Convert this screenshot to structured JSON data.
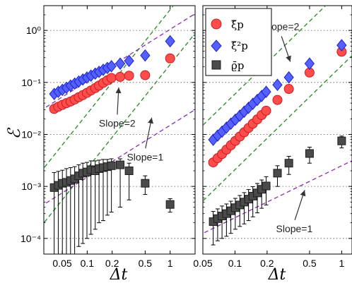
{
  "figure": {
    "ylabel": "ℰ",
    "xlabel": "Δt",
    "legend": [
      "ξ̃p",
      "ξ̃²p",
      "ϱ̄p"
    ],
    "colors": {
      "xi": "#ff4d4d",
      "xi_edge": "#cc1a1a",
      "xi2": "#5560ff",
      "xi2_edge": "#1a24cc",
      "rho": "#4a4a4a",
      "rho_edge": "#1e1e1e",
      "slope2": "#228b22",
      "slope1": "#8b2bb0"
    }
  },
  "chart_data": [
    {
      "type": "scatter",
      "panel": "left",
      "xscale": "log",
      "yscale": "log",
      "xlim": [
        0.03,
        2.0
      ],
      "ylim": [
        5e-05,
        3.0
      ],
      "xticks": [
        0.05,
        0.1,
        0.2,
        0.5,
        1
      ],
      "xtick_labels": [
        "0.05",
        "0.1",
        "0.2",
        "0.5",
        "1"
      ],
      "yticks": [
        0.0001,
        0.001,
        0.01,
        0.1,
        1
      ],
      "ytick_labels": [
        "10⁻⁴",
        "10⁻³",
        "10⁻²",
        "10⁻¹",
        "10⁰"
      ],
      "grid": "horizontal dotted",
      "series": [
        {
          "name": "ξ̃p",
          "marker": "circle",
          "x": [
            0.04,
            0.0448,
            0.0502,
            0.0562,
            0.063,
            0.0706,
            0.0791,
            0.0886,
            0.0993,
            0.111,
            0.125,
            0.139,
            0.156,
            0.175,
            0.196,
            0.25,
            0.32,
            0.5,
            1.0
          ],
          "y": [
            0.031,
            0.034,
            0.037,
            0.04,
            0.043,
            0.047,
            0.052,
            0.057,
            0.063,
            0.07,
            0.078,
            0.087,
            0.098,
            0.11,
            0.122,
            0.128,
            0.135,
            0.138,
            0.29
          ]
        },
        {
          "name": "ξ̃²p",
          "marker": "diamond",
          "x": [
            0.04,
            0.0448,
            0.0502,
            0.0562,
            0.063,
            0.0706,
            0.0791,
            0.0886,
            0.0993,
            0.111,
            0.125,
            0.139,
            0.156,
            0.175,
            0.196,
            0.25,
            0.32,
            0.5,
            1.0
          ],
          "y": [
            0.06,
            0.066,
            0.072,
            0.079,
            0.087,
            0.095,
            0.104,
            0.114,
            0.124,
            0.135,
            0.148,
            0.16,
            0.175,
            0.19,
            0.205,
            0.23,
            0.26,
            0.33,
            0.62
          ]
        },
        {
          "name": "ϱ̄p",
          "marker": "square",
          "x": [
            0.04,
            0.0448,
            0.0502,
            0.0562,
            0.063,
            0.0706,
            0.0791,
            0.0886,
            0.0993,
            0.111,
            0.125,
            0.139,
            0.156,
            0.175,
            0.196,
            0.25,
            0.32,
            0.5,
            1.0
          ],
          "y": [
            0.00095,
            0.00105,
            0.00115,
            0.0012,
            0.0013,
            0.0014,
            0.0016,
            0.0018,
            0.0019,
            0.0021,
            0.002,
            0.0022,
            0.0023,
            0.0024,
            0.0025,
            0.0026,
            0.002,
            0.00115,
            0.00045
          ],
          "err_low": [
            0.00093,
            0.00103,
            0.00113,
            0.00118,
            0.00128,
            0.00136,
            0.00153,
            0.00172,
            0.0018,
            0.00198,
            0.00185,
            0.002,
            0.00208,
            0.00212,
            0.00218,
            0.0022,
            0.00145,
            0.00045,
            0.00013
          ],
          "err_high": [
            0.0009,
            0.0009,
            0.0009,
            0.001,
            0.001,
            0.001,
            0.001,
            0.001,
            0.001,
            0.001,
            0.0011,
            0.001,
            0.001,
            0.0009,
            0.0009,
            0.0008,
            0.0008,
            0.00045,
            0.00013
          ]
        }
      ],
      "guides": [
        {
          "slope": 2,
          "style": "dashed",
          "color": "slope2",
          "through": [
            0.1,
            0.025
          ]
        },
        {
          "slope": 2,
          "style": "dashed",
          "color": "slope2",
          "through": [
            0.1,
            0.0022
          ]
        },
        {
          "slope": 1,
          "style": "dashed",
          "color": "slope1",
          "through": [
            0.1,
            0.105
          ]
        },
        {
          "slope": 1,
          "style": "dashed",
          "color": "slope1",
          "through": [
            0.1,
            0.0015
          ]
        }
      ],
      "annotations": [
        {
          "text": "Slope=2",
          "at": [
            0.23,
            0.0165
          ],
          "arrow_to": [
            0.24,
            0.08
          ]
        },
        {
          "text": "Slope=1",
          "at": [
            0.5,
            0.0037
          ],
          "arrow_to": [
            0.6,
            0.021
          ]
        }
      ]
    },
    {
      "type": "scatter",
      "panel": "right",
      "xscale": "log",
      "yscale": "log",
      "xlim": [
        0.05,
        1.25
      ],
      "ylim": [
        5e-05,
        3.0
      ],
      "xticks": [
        0.05,
        0.1,
        0.2,
        0.5,
        1
      ],
      "xtick_labels": [
        "0.05",
        "0.1",
        "0.2",
        "0.5",
        "1"
      ],
      "yticks": [
        0.0001,
        0.001,
        0.01,
        0.1,
        1
      ],
      "ytick_labels": [],
      "grid": "horizontal dotted",
      "series": [
        {
          "name": "ξ̃p",
          "marker": "circle",
          "x": [
            0.0625,
            0.0688,
            0.0756,
            0.0832,
            0.0915,
            0.1007,
            0.111,
            0.122,
            0.134,
            0.147,
            0.162,
            0.178,
            0.196,
            0.25,
            0.32,
            0.5,
            1.0
          ],
          "y": [
            0.0029,
            0.0035,
            0.0042,
            0.0051,
            0.0062,
            0.0075,
            0.0091,
            0.011,
            0.0133,
            0.0161,
            0.0195,
            0.0236,
            0.0286,
            0.046,
            0.075,
            0.155,
            0.39
          ]
        },
        {
          "name": "ξ̃²p",
          "marker": "diamond",
          "x": [
            0.0625,
            0.0688,
            0.0756,
            0.0832,
            0.0915,
            0.1007,
            0.111,
            0.122,
            0.134,
            0.147,
            0.162,
            0.178,
            0.196,
            0.25,
            0.32,
            0.5,
            1.0
          ],
          "y": [
            0.0079,
            0.0095,
            0.0113,
            0.0135,
            0.0161,
            0.0192,
            0.0229,
            0.0273,
            0.0325,
            0.0388,
            0.0462,
            0.055,
            0.066,
            0.09,
            0.125,
            0.23,
            0.52
          ]
        },
        {
          "name": "ϱ̄p",
          "marker": "square",
          "x": [
            0.0625,
            0.0688,
            0.0756,
            0.0832,
            0.0915,
            0.1007,
            0.111,
            0.122,
            0.134,
            0.147,
            0.162,
            0.178,
            0.196,
            0.25,
            0.32,
            0.5,
            1.0
          ],
          "y": [
            0.00021,
            0.00024,
            0.00027,
            0.0003,
            0.00034,
            0.00039,
            0.00044,
            0.0005,
            0.00057,
            0.00065,
            0.00075,
            0.00088,
            0.00102,
            0.0018,
            0.0028,
            0.0043,
            0.0075
          ],
          "err_low": [
            0.000135,
            0.00015,
            0.00017,
            0.00019,
            0.000215,
            0.00024,
            0.00027,
            0.00031,
            0.00035,
            0.00039,
            0.00044,
            0.0005,
            0.00058,
            0.0008,
            0.0011,
            0.0015,
            0.002
          ],
          "err_high": [
            0.00012,
            0.00013,
            0.00015,
            0.00016,
            0.00018,
            0.0002,
            0.00023,
            0.00026,
            0.0003,
            0.00034,
            0.00039,
            0.00045,
            0.00052,
            0.0007,
            0.001,
            0.0014,
            0.0018
          ]
        }
      ],
      "guides": [
        {
          "slope": 2,
          "style": "dashed",
          "color": "slope2",
          "through": [
            0.1,
            0.06
          ]
        },
        {
          "slope": 2,
          "style": "dashed",
          "color": "slope2",
          "through": [
            0.1,
            0.0021
          ]
        },
        {
          "slope": 1,
          "style": "dashed",
          "color": "slope1",
          "through": [
            0.1,
            0.00025
          ]
        }
      ],
      "annotations": [
        {
          "text": "Slope=2",
          "at": [
            0.27,
            1.2
          ],
          "arrow_to": [
            0.33,
            0.25
          ]
        },
        {
          "text": "Slope=1",
          "at": [
            0.36,
            0.000155
          ],
          "arrow_to": [
            0.45,
            0.00085
          ]
        }
      ]
    }
  ]
}
